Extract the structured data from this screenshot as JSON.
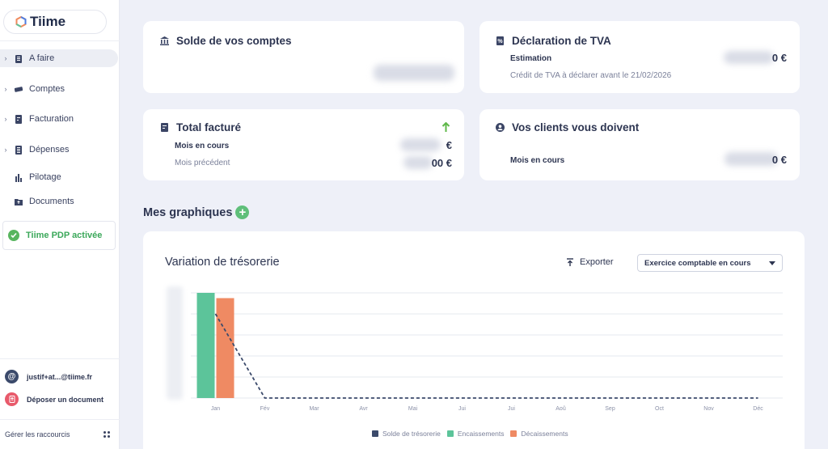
{
  "app": {
    "name": "Tiime"
  },
  "sidebar": {
    "items": [
      {
        "label": "A faire",
        "icon": "clipboard-icon",
        "chevron": true,
        "active": true
      },
      {
        "label": "Comptes",
        "icon": "cards-icon",
        "chevron": true,
        "active": false
      },
      {
        "label": "Facturation",
        "icon": "invoice-icon",
        "chevron": true,
        "active": false
      },
      {
        "label": "Dépenses",
        "icon": "receipt-icon",
        "chevron": true,
        "active": false
      },
      {
        "label": "Pilotage",
        "icon": "bar-chart-icon",
        "chevron": false,
        "active": false
      },
      {
        "label": "Documents",
        "icon": "folder-upload-icon",
        "chevron": false,
        "active": false
      }
    ],
    "pdp_label": "Tiime PDP activée",
    "email": "justif+at...@tiime.fr",
    "deposit_label": "Déposer un document",
    "shortcuts_label": "Gérer les raccourcis"
  },
  "cards": {
    "balance": {
      "title": "Solde de vos comptes"
    },
    "vat": {
      "title": "Déclaration de TVA",
      "estimation_label": "Estimation",
      "estimation_suffix": "0 €",
      "credit_note": "Crédit de TVA à déclarer avant le 21/02/2026"
    },
    "invoiced": {
      "title": "Total facturé",
      "current_label": "Mois en cours",
      "current_suffix": "€",
      "previous_label": "Mois précédent",
      "previous_suffix": "00 €"
    },
    "clients": {
      "title": "Vos clients vous doivent",
      "current_label": "Mois en cours",
      "current_suffix": "0 €"
    }
  },
  "section": {
    "title": "Mes graphiques"
  },
  "chart_panel": {
    "title": "Variation de trésorerie",
    "export_label": "Exporter",
    "period_select": "Exercice comptable en cours"
  },
  "colors": {
    "solde": "#3b4a6b",
    "encaissements": "#5cc49a",
    "decaissements": "#ef8a63",
    "accent_green": "#5fbf7a"
  },
  "chart_data": {
    "type": "bar",
    "categories": [
      "Jan",
      "Fév",
      "Mar",
      "Avr",
      "Mai",
      "Jui",
      "Jui",
      "Aoû",
      "Sep",
      "Oct",
      "Nov",
      "Déc"
    ],
    "series": [
      {
        "name": "Solde de trésorerie",
        "kind": "line-dashed",
        "values": [
          0.8,
          0,
          0,
          0,
          0,
          0,
          0,
          0,
          0,
          0,
          0,
          0
        ]
      },
      {
        "name": "Encaissements",
        "kind": "bar",
        "values": [
          1.0,
          0,
          0,
          0,
          0,
          0,
          0,
          0,
          0,
          0,
          0,
          0
        ]
      },
      {
        "name": "Décaissements",
        "kind": "bar",
        "values": [
          0.95,
          0,
          0,
          0,
          0,
          0,
          0,
          0,
          0,
          0,
          0,
          0
        ]
      }
    ],
    "ylim": [
      0,
      1
    ],
    "grid": true,
    "legend_position": "bottom"
  }
}
